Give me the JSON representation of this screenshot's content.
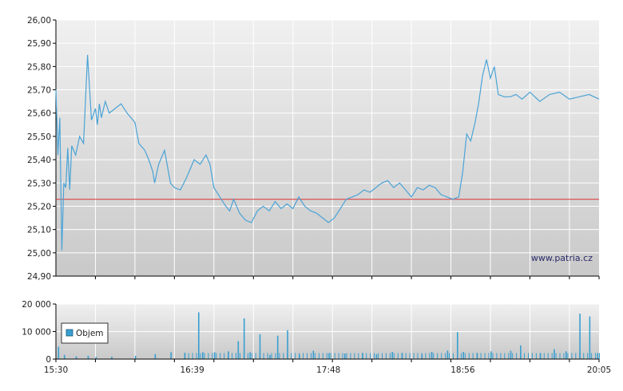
{
  "watermark": "www.patria.cz",
  "legend_label": "Objem",
  "colors": {
    "price_line": "#4aa3d6",
    "reference_line": "#e03030",
    "volume_bar": "#3a9fd0",
    "grid": "#ffffff",
    "axis": "#000000"
  },
  "chart_data": [
    {
      "type": "line",
      "title": "",
      "x_ticks": [
        "15:30",
        "16:39",
        "17:48",
        "18:56",
        "20:05"
      ],
      "y_ticks": [
        "24,90",
        "25,00",
        "25,10",
        "25,20",
        "25,30",
        "25,40",
        "25,50",
        "25,60",
        "25,70",
        "25,80",
        "25,90",
        "26,00"
      ],
      "ylim": [
        24.9,
        26.0
      ],
      "xlim_minutes": [
        "15:30",
        "20:05"
      ],
      "reference_value": 25.23,
      "series": [
        {
          "x": [
            "15:30",
            "15:31",
            "15:32",
            "15:33",
            "15:34",
            "15:35",
            "15:36",
            "15:37",
            "15:38",
            "15:40",
            "15:42",
            "15:44",
            "15:46",
            "15:48",
            "15:50",
            "15:51",
            "15:52",
            "15:53",
            "15:55",
            "15:57",
            "16:00",
            "16:03",
            "16:06",
            "16:10",
            "16:12",
            "16:15",
            "16:17",
            "16:19",
            "16:20",
            "16:22",
            "16:25",
            "16:28",
            "16:30",
            "16:33",
            "16:36",
            "16:40",
            "16:43",
            "16:46",
            "16:48",
            "16:50",
            "16:53",
            "16:56",
            "16:58",
            "17:00",
            "17:03",
            "17:06",
            "17:09",
            "17:12",
            "17:15",
            "17:18",
            "17:21",
            "17:24",
            "17:27",
            "17:30",
            "17:33",
            "17:36",
            "17:39",
            "17:42",
            "17:45",
            "17:48",
            "17:51",
            "17:54",
            "17:57",
            "18:00",
            "18:03",
            "18:06",
            "18:09",
            "18:12",
            "18:15",
            "18:18",
            "18:21",
            "18:24",
            "18:27",
            "18:30",
            "18:33",
            "18:36",
            "18:39",
            "18:42",
            "18:45",
            "18:48",
            "18:51",
            "18:54",
            "18:56",
            "18:58",
            "19:00",
            "19:02",
            "19:04",
            "19:06",
            "19:08",
            "19:10",
            "19:12",
            "19:14",
            "19:17",
            "19:20",
            "19:23",
            "19:26",
            "19:30",
            "19:35",
            "19:40",
            "19:45",
            "19:50",
            "19:55",
            "20:00",
            "20:05"
          ],
          "values": [
            25.7,
            25.42,
            25.58,
            25.01,
            25.3,
            25.28,
            25.45,
            25.27,
            25.46,
            25.42,
            25.5,
            25.47,
            25.85,
            25.57,
            25.62,
            25.55,
            25.64,
            25.58,
            25.65,
            25.6,
            25.62,
            25.64,
            25.6,
            25.56,
            25.47,
            25.44,
            25.4,
            25.35,
            25.3,
            25.38,
            25.44,
            25.3,
            25.28,
            25.27,
            25.32,
            25.4,
            25.38,
            25.42,
            25.38,
            25.28,
            25.24,
            25.2,
            25.18,
            25.23,
            25.17,
            25.14,
            25.13,
            25.18,
            25.2,
            25.18,
            25.22,
            25.19,
            25.21,
            25.19,
            25.24,
            25.2,
            25.18,
            25.17,
            25.15,
            25.13,
            25.15,
            25.19,
            25.23,
            25.24,
            25.25,
            25.27,
            25.26,
            25.28,
            25.3,
            25.31,
            25.28,
            25.3,
            25.27,
            25.24,
            25.28,
            25.27,
            25.29,
            25.28,
            25.25,
            25.24,
            25.23,
            25.24,
            25.35,
            25.51,
            25.48,
            25.55,
            25.64,
            25.76,
            25.83,
            25.75,
            25.8,
            25.68,
            25.67,
            25.67,
            25.68,
            25.66,
            25.69,
            25.65,
            25.68,
            25.69,
            25.66,
            25.67,
            25.68,
            25.66
          ]
        }
      ]
    },
    {
      "type": "bar",
      "title": "",
      "legend": [
        "Objem"
      ],
      "legend_position": "left",
      "y_ticks": [
        "0",
        "10 000",
        "20 000"
      ],
      "ylim": [
        0,
        20000
      ],
      "x_ticks": [
        "15:30",
        "16:39",
        "17:48",
        "18:56",
        "20:05"
      ],
      "series": [
        {
          "name": "Objem",
          "x": [
            "15:31",
            "15:34",
            "15:40",
            "15:46",
            "15:50",
            "15:58",
            "16:10",
            "16:20",
            "16:28",
            "16:35",
            "16:42",
            "16:44",
            "16:50",
            "16:57",
            "17:02",
            "17:05",
            "17:08",
            "17:13",
            "17:18",
            "17:22",
            "17:27",
            "17:33",
            "17:40",
            "17:48",
            "17:56",
            "18:05",
            "18:12",
            "18:20",
            "18:25",
            "18:35",
            "18:40",
            "18:48",
            "18:53",
            "18:56",
            "19:03",
            "19:10",
            "19:20",
            "19:25",
            "19:35",
            "19:42",
            "19:48",
            "19:55",
            "20:00",
            "20:04"
          ],
          "values": [
            4500,
            1500,
            1000,
            1200,
            800,
            900,
            1200,
            1800,
            2500,
            2300,
            17000,
            2500,
            2500,
            2800,
            6500,
            14800,
            2500,
            9000,
            1500,
            8500,
            10500,
            1600,
            3000,
            2200,
            2000,
            2300,
            1800,
            2600,
            2300,
            1900,
            2600,
            3100,
            9800,
            2600,
            2300,
            2800,
            3000,
            5000,
            2200,
            3600,
            2800,
            16500,
            15500,
            2200
          ]
        }
      ]
    }
  ]
}
